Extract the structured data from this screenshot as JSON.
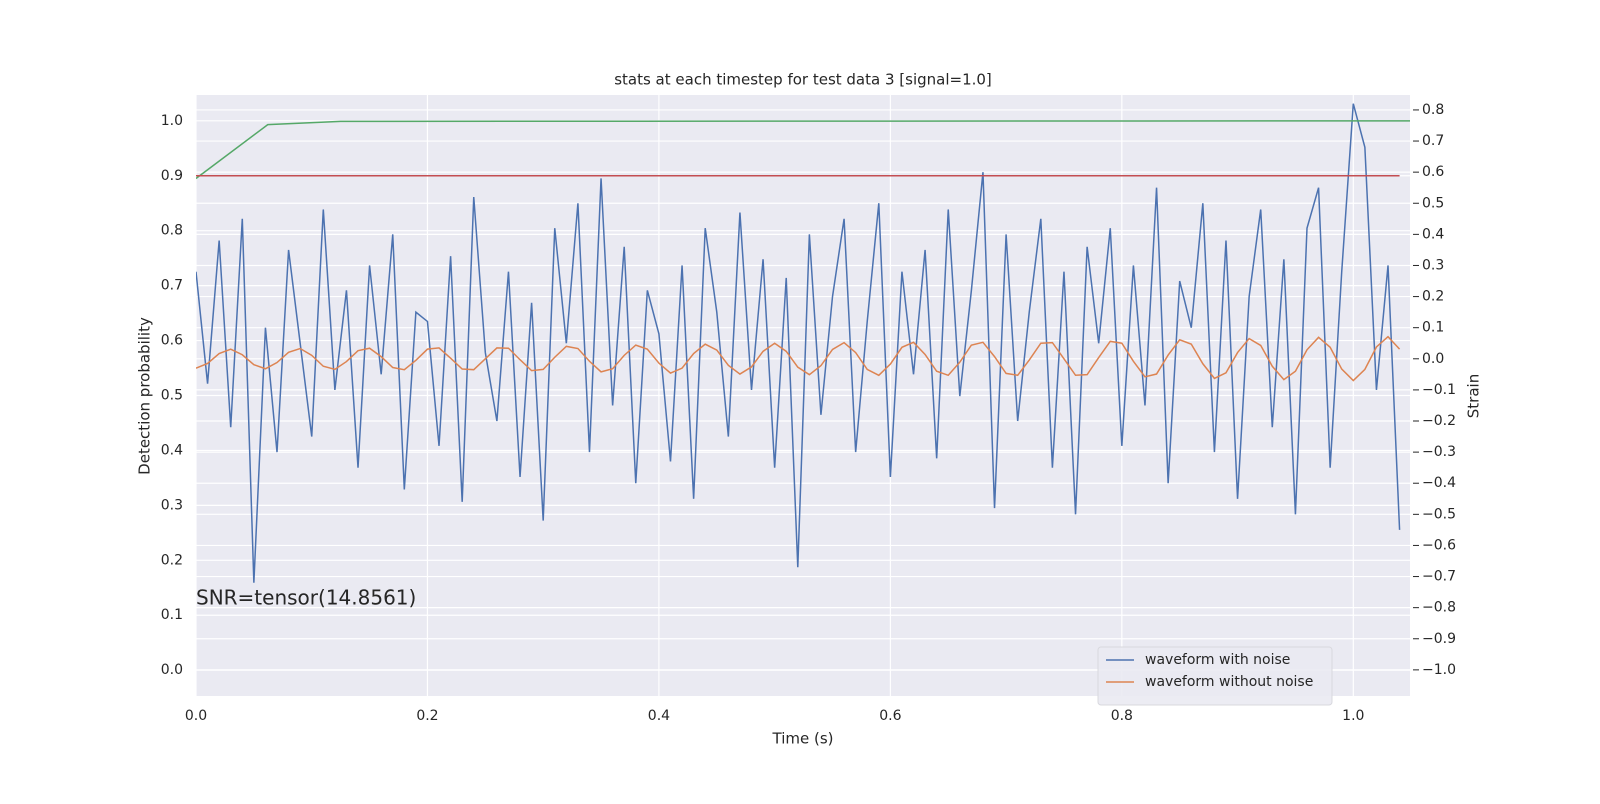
{
  "chart_data": {
    "type": "line",
    "title": "stats at each timestep for test data 3 [signal=1.0]",
    "xlabel": "Time (s)",
    "ylabel": "Detection probability",
    "y2label": "Strain",
    "xlim": [
      0,
      1.049
    ],
    "ylim": [
      -0.047,
      1.047
    ],
    "y2lim": [
      -1.084,
      0.848
    ],
    "xticks": [
      {
        "value": 0,
        "label": "0.0"
      },
      {
        "value": 0.2,
        "label": "0.2"
      },
      {
        "value": 0.4,
        "label": "0.4"
      },
      {
        "value": 0.6,
        "label": "0.6"
      },
      {
        "value": 0.8,
        "label": "0.8"
      },
      {
        "value": 1,
        "label": "1.0"
      }
    ],
    "yticks": [
      {
        "value": 0,
        "label": "0.0"
      },
      0.1,
      0.2,
      0.3,
      0.4,
      0.5,
      0.6,
      0.7,
      0.8,
      0.9,
      {
        "value": 1,
        "label": "1.0"
      }
    ],
    "y2ticks": [
      {
        "value": -1,
        "label": "−1.0"
      },
      {
        "value": -0.9,
        "label": "−0.9"
      },
      {
        "value": -0.8,
        "label": "−0.8"
      },
      {
        "value": -0.7,
        "label": "−0.7"
      },
      {
        "value": -0.6,
        "label": "−0.6"
      },
      {
        "value": -0.5,
        "label": "−0.5"
      },
      {
        "value": -0.4,
        "label": "−0.4"
      },
      {
        "value": -0.3,
        "label": "−0.3"
      },
      {
        "value": -0.2,
        "label": "−0.2"
      },
      {
        "value": -0.1,
        "label": "−0.1"
      },
      {
        "value": 0,
        "label": "0.0"
      },
      0.1,
      0.2,
      0.3,
      0.4,
      0.5,
      0.6,
      0.7,
      0.8
    ],
    "grid": true,
    "legend": "lower right",
    "x": [
      0,
      0.01,
      0.02,
      0.03,
      0.04,
      0.05,
      0.06,
      0.07,
      0.08,
      0.09,
      0.1,
      0.11,
      0.12,
      0.13,
      0.14,
      0.15,
      0.16,
      0.17,
      0.18,
      0.19,
      0.2,
      0.21,
      0.22,
      0.23,
      0.24,
      0.25,
      0.26,
      0.27,
      0.28,
      0.29,
      0.3,
      0.31,
      0.32,
      0.33,
      0.34,
      0.35,
      0.36,
      0.37,
      0.38,
      0.39,
      0.4,
      0.41,
      0.42,
      0.43,
      0.44,
      0.45,
      0.46,
      0.47,
      0.48,
      0.49,
      0.5,
      0.51,
      0.52,
      0.53,
      0.54,
      0.55,
      0.56,
      0.57,
      0.58,
      0.59,
      0.6,
      0.61,
      0.62,
      0.63,
      0.64,
      0.65,
      0.66,
      0.67,
      0.68,
      0.69,
      0.7,
      0.71,
      0.72,
      0.73,
      0.74,
      0.75,
      0.76,
      0.77,
      0.78,
      0.79,
      0.8,
      0.81,
      0.82,
      0.83,
      0.84,
      0.85,
      0.86,
      0.87,
      0.88,
      0.89,
      0.9,
      0.91,
      0.92,
      0.93,
      0.94,
      0.95,
      0.96,
      0.97,
      0.98,
      0.99,
      1,
      1.01,
      1.02,
      1.03,
      1.04
    ],
    "series": [
      {
        "name": "waveform with noise",
        "color": "#4c72b0",
        "axis": "y2",
        "values": [
          0.28,
          -0.08,
          0.38,
          -0.22,
          0.45,
          -0.72,
          0.1,
          -0.3,
          0.35,
          0.05,
          -0.25,
          0.48,
          -0.1,
          0.22,
          -0.35,
          0.3,
          -0.05,
          0.4,
          -0.42,
          0.15,
          0.12,
          -0.28,
          0.33,
          -0.46,
          0.52,
          0.02,
          -0.2,
          0.28,
          -0.38,
          0.18,
          -0.52,
          0.42,
          0.05,
          0.5,
          -0.3,
          0.58,
          -0.15,
          0.36,
          -0.4,
          0.22,
          0.08,
          -0.33,
          0.3,
          -0.45,
          0.42,
          0.15,
          -0.25,
          0.47,
          -0.1,
          0.32,
          -0.35,
          0.26,
          -0.67,
          0.4,
          -0.18,
          0.2,
          0.45,
          -0.3,
          0.12,
          0.5,
          -0.38,
          0.28,
          -0.05,
          0.35,
          -0.32,
          0.48,
          -0.12,
          0.22,
          0.6,
          -0.48,
          0.4,
          -0.2,
          0.15,
          0.45,
          -0.35,
          0.28,
          -0.5,
          0.36,
          0.05,
          0.42,
          -0.28,
          0.3,
          -0.15,
          0.55,
          -0.4,
          0.25,
          0.1,
          0.5,
          -0.3,
          0.38,
          -0.45,
          0.2,
          0.48,
          -0.22,
          0.32,
          -0.5,
          0.42,
          0.55,
          -0.35,
          0.28,
          0.82,
          0.68,
          -0.1,
          0.3,
          -0.55
        ]
      },
      {
        "name": "waveform without noise",
        "color": "#dd8452",
        "axis": "y2",
        "values": [
          -0.03,
          -0.015,
          0.017,
          0.031,
          0.013,
          -0.019,
          -0.032,
          -0.012,
          0.021,
          0.033,
          0.011,
          -0.024,
          -0.034,
          -0.009,
          0.026,
          0.034,
          0.007,
          -0.028,
          -0.035,
          -0.005,
          0.031,
          0.035,
          0.002,
          -0.033,
          -0.035,
          0.0,
          0.035,
          0.034,
          -0.003,
          -0.038,
          -0.034,
          0.005,
          0.04,
          0.033,
          -0.008,
          -0.042,
          -0.032,
          0.011,
          0.044,
          0.031,
          -0.014,
          -0.046,
          -0.03,
          0.017,
          0.047,
          0.028,
          -0.021,
          -0.049,
          -0.026,
          0.024,
          0.05,
          0.024,
          -0.027,
          -0.051,
          -0.022,
          0.03,
          0.052,
          0.02,
          -0.034,
          -0.053,
          -0.017,
          0.037,
          0.053,
          0.014,
          -0.04,
          -0.053,
          -0.011,
          0.044,
          0.053,
          0.007,
          -0.047,
          -0.053,
          -0.004,
          0.05,
          0.052,
          0.0,
          -0.053,
          -0.051,
          0.004,
          0.056,
          0.05,
          -0.008,
          -0.058,
          -0.049,
          0.012,
          0.061,
          0.047,
          -0.016,
          -0.063,
          -0.045,
          0.02,
          0.065,
          0.043,
          -0.024,
          -0.067,
          -0.04,
          0.029,
          0.069,
          0.037,
          -0.033,
          -0.07,
          -0.034,
          0.038,
          0.071,
          0.031
        ]
      },
      {
        "color": "#55a868",
        "x": [
          0,
          0.062,
          0.125,
          1.049
        ],
        "values": [
          0.895,
          0.993,
          0.999,
          1.0
        ]
      },
      {
        "color": "#c44e52",
        "x": [
          0,
          1.04
        ],
        "values": [
          0.9,
          0.9
        ]
      }
    ],
    "annotation": {
      "text": "SNR=tensor(14.8561)",
      "x": 0,
      "y": 0.13
    }
  }
}
